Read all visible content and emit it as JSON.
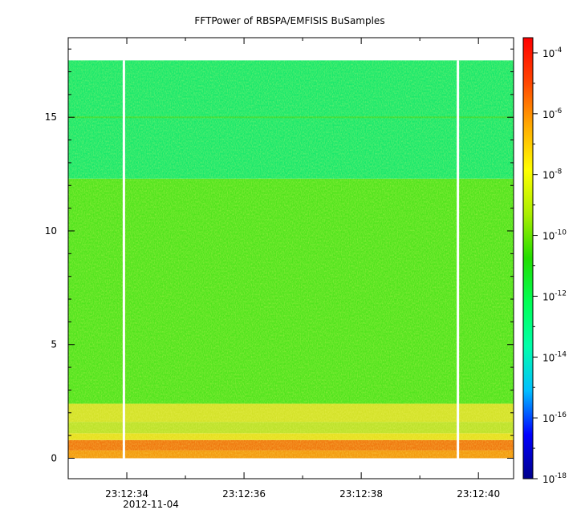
{
  "chart_data": {
    "type": "heatmap",
    "title": "FFTPower of RBSPA/EMFISIS  BuSamples",
    "xlabel": "",
    "ylabel": "",
    "x_ticks": [
      {
        "t": 34,
        "label": "23:12:34"
      },
      {
        "t": 36,
        "label": "23:12:36"
      },
      {
        "t": 38,
        "label": "23:12:38"
      },
      {
        "t": 40,
        "label": "23:12:40"
      }
    ],
    "x_date_label": "2012-11-04",
    "xlim": [
      33.0,
      40.6
    ],
    "y_ticks": [
      {
        "v": 0,
        "label": "0"
      },
      {
        "v": 5,
        "label": "5"
      },
      {
        "v": 10,
        "label": "10"
      },
      {
        "v": 15,
        "label": "15"
      }
    ],
    "ylim": [
      -0.9,
      18.5
    ],
    "data_top": 17.5,
    "gaps": [
      33.95,
      39.65
    ],
    "colorbar": {
      "scale": "log",
      "range_exp": [
        -18,
        -3.5
      ],
      "ticks": [
        {
          "exp": -18,
          "base": "10",
          "sup": "-18"
        },
        {
          "exp": -16,
          "base": "10",
          "sup": "-16"
        },
        {
          "exp": -14,
          "base": "10",
          "sup": "-14"
        },
        {
          "exp": -12,
          "base": "10",
          "sup": "-12"
        },
        {
          "exp": -10,
          "base": "10",
          "sup": "-10"
        },
        {
          "exp": -8,
          "base": "10",
          "sup": "-8"
        },
        {
          "exp": -6,
          "base": "10",
          "sup": "-6"
        },
        {
          "exp": -4,
          "base": "10",
          "sup": "-4"
        }
      ],
      "colors": [
        "#00008b",
        "#0000ff",
        "#00bfff",
        "#00ffaa",
        "#00ff55",
        "#22dd00",
        "#aaee00",
        "#ffff00",
        "#ffaa00",
        "#ff4400",
        "#ff0000"
      ]
    },
    "bands": [
      {
        "y0": 0.0,
        "y1": 0.35,
        "level_exp": -7.3,
        "color": "#f39a10"
      },
      {
        "y0": 0.35,
        "y1": 0.8,
        "level_exp": -7.0,
        "color": "#f07a10"
      },
      {
        "y0": 0.8,
        "y1": 1.1,
        "level_exp": -8.0,
        "color": "#e6e020"
      },
      {
        "y0": 1.1,
        "y1": 1.6,
        "level_exp": -9.0,
        "color": "#bde22b"
      },
      {
        "y0": 1.6,
        "y1": 2.4,
        "level_exp": -8.5,
        "color": "#d4e22a"
      },
      {
        "y0": 2.4,
        "y1": 12.3,
        "level_exp": -10.5,
        "color": "#52e41e"
      },
      {
        "y0": 12.3,
        "y1": 17.5,
        "level_exp": -12.0,
        "color": "#1be86c"
      }
    ],
    "lines": [
      {
        "y": 15.0,
        "color": "#34dc3a"
      }
    ]
  }
}
